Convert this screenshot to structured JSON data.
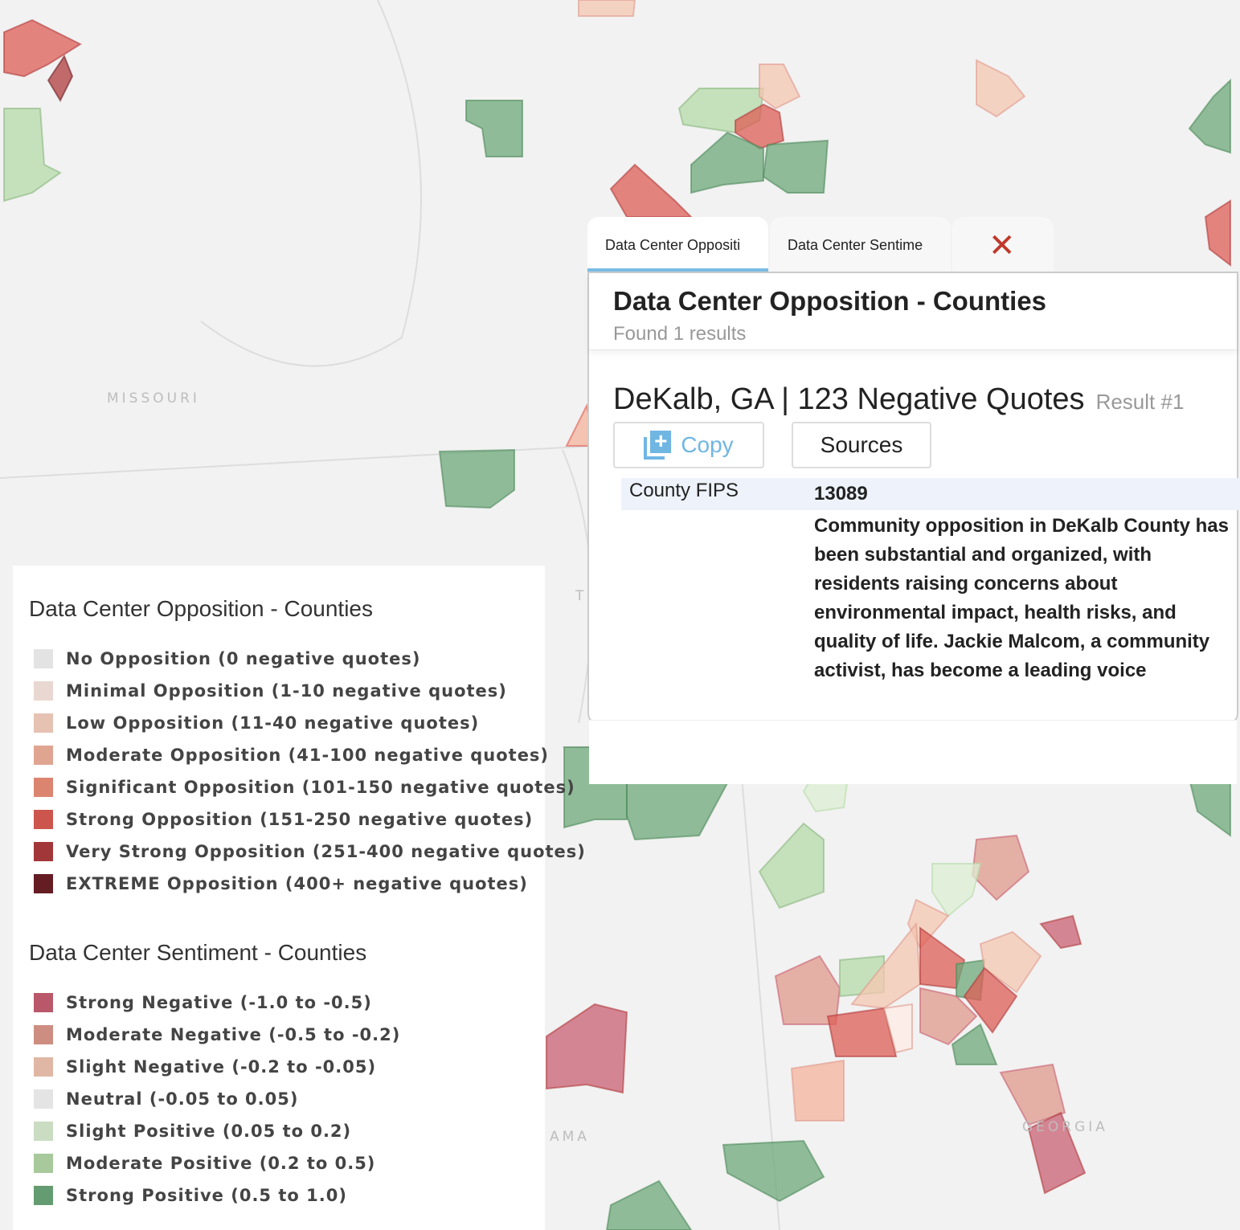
{
  "map": {
    "state_labels": [
      "MISSOURI",
      "AMA",
      "GEORGIA",
      "T"
    ]
  },
  "legend": {
    "opposition": {
      "title": "Data Center Opposition - Counties",
      "items": [
        {
          "label": "No Opposition (0 negative quotes)",
          "color": "#f7f7f7"
        },
        {
          "label": "Minimal Opposition (1-10 negative quotes)",
          "color": "#fdebe3"
        },
        {
          "label": "Low Opposition (11-40 negative quotes)",
          "color": "#fad3c3"
        },
        {
          "label": "Moderate Opposition (41-100 negative quotes)",
          "color": "#f4b39c"
        },
        {
          "label": "Significant Opposition (101-150 negative quotes)",
          "color": "#ee917b"
        },
        {
          "label": "Strong Opposition (151-250 negative quotes)",
          "color": "#de5d55"
        },
        {
          "label": "Very Strong Opposition (251-400 negative quotes)",
          "color": "#b03c3e"
        },
        {
          "label": "EXTREME Opposition (400+ negative quotes)",
          "color": "#6d1f26"
        }
      ]
    },
    "sentiment": {
      "title": "Data Center Sentiment - Counties",
      "items": [
        {
          "label": "Strong Negative (-1.0 to -0.5)",
          "color": "#c96073"
        },
        {
          "label": "Moderate Negative (-0.5 to -0.2)",
          "color": "#df9a8c"
        },
        {
          "label": "Slight Negative (-0.2 to -0.05)",
          "color": "#f4c7b2"
        },
        {
          "label": "Neutral (-0.05 to 0.05)",
          "color": "#f8f8f8"
        },
        {
          "label": "Slight Positive (0.05 to 0.2)",
          "color": "#dcefd3"
        },
        {
          "label": "Moderate Positive (0.2 to 0.5)",
          "color": "#b5dba9"
        },
        {
          "label": "Strong Positive (0.5 to 1.0)",
          "color": "#6ea87a"
        }
      ]
    }
  },
  "popup": {
    "tabs": [
      "Data Center Oppositi",
      "Data Center Sentime"
    ],
    "close_icon": "close-x-icon",
    "title": "Data Center Opposition - Counties",
    "found": "Found 1 results",
    "result_title": "DeKalb, GA | 123 Negative Quotes",
    "result_number": "Result #1",
    "copy_label": "Copy",
    "sources_label": "Sources",
    "fields": [
      {
        "key": "County FIPS",
        "value": "13089"
      },
      {
        "key": "",
        "value": "Community opposition in DeKalb County has been substantial and organized, with residents raising concerns about environmental impact, health risks, and quality of life. Jackie Malcom, a community activist, has become a leading voice"
      }
    ]
  }
}
